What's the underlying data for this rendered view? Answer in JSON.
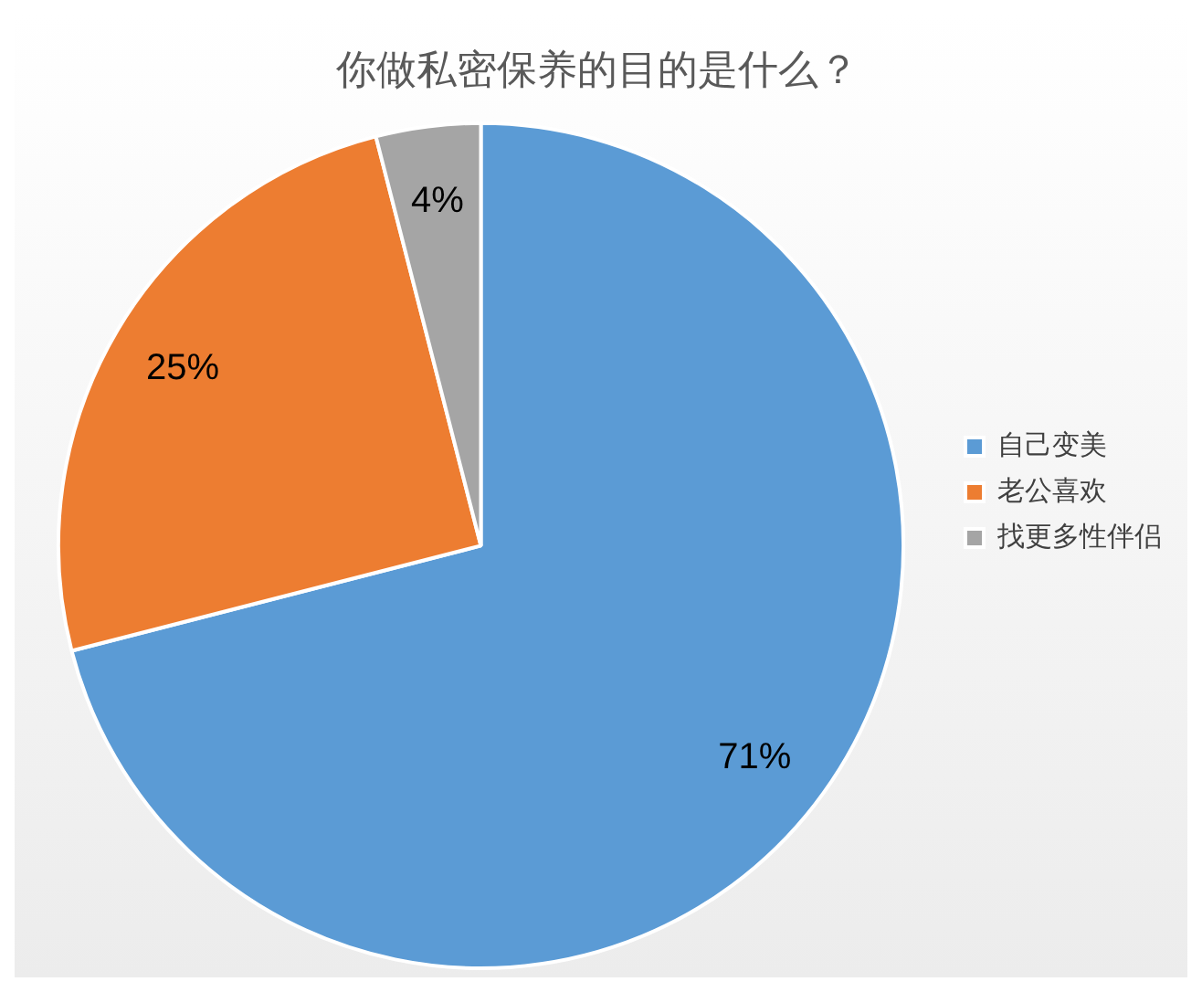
{
  "chart_data": {
    "type": "pie",
    "title": "你做私密保养的目的是什么？",
    "categories": [
      "自己变美",
      "老公喜欢",
      "找更多性伴侣"
    ],
    "values": [
      71,
      25,
      4
    ],
    "colors": [
      "#5b9bd5",
      "#ed7d31",
      "#a5a5a5"
    ],
    "value_labels": [
      "71%",
      "25%",
      "4%"
    ],
    "legend": "right"
  }
}
